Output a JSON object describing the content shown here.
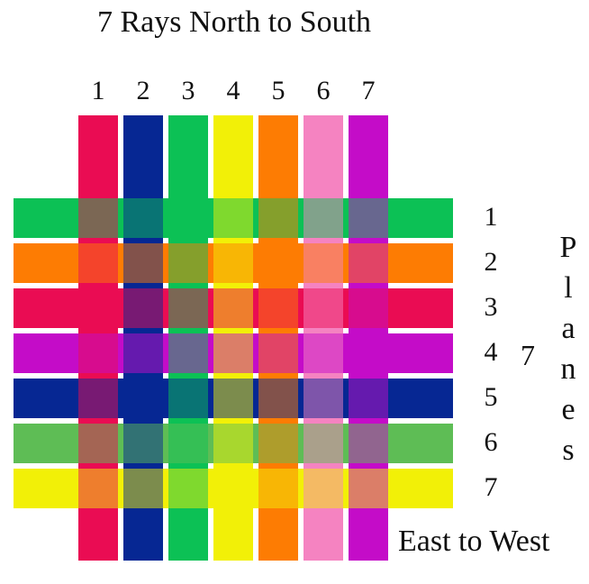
{
  "title": "7 Rays North to South",
  "rays": {
    "labels": [
      "1",
      "2",
      "3",
      "4",
      "5",
      "6",
      "7"
    ],
    "colors": [
      "#ea0c53",
      "#062793",
      "#0cc155",
      "#f2f007",
      "#fd7c03",
      "#f583c1",
      "#c40cc8"
    ]
  },
  "planes": {
    "labels": [
      "1",
      "2",
      "3",
      "4",
      "5",
      "6",
      "7"
    ],
    "colors": [
      "#0cc155",
      "#fd7c03",
      "#ea0c53",
      "#c40cc8",
      "#062793",
      "#5ebd55",
      "#f2f007"
    ],
    "count": "7",
    "word": [
      "P",
      "l",
      "a",
      "n",
      "e",
      "s"
    ]
  },
  "east_west_label": "East to West"
}
